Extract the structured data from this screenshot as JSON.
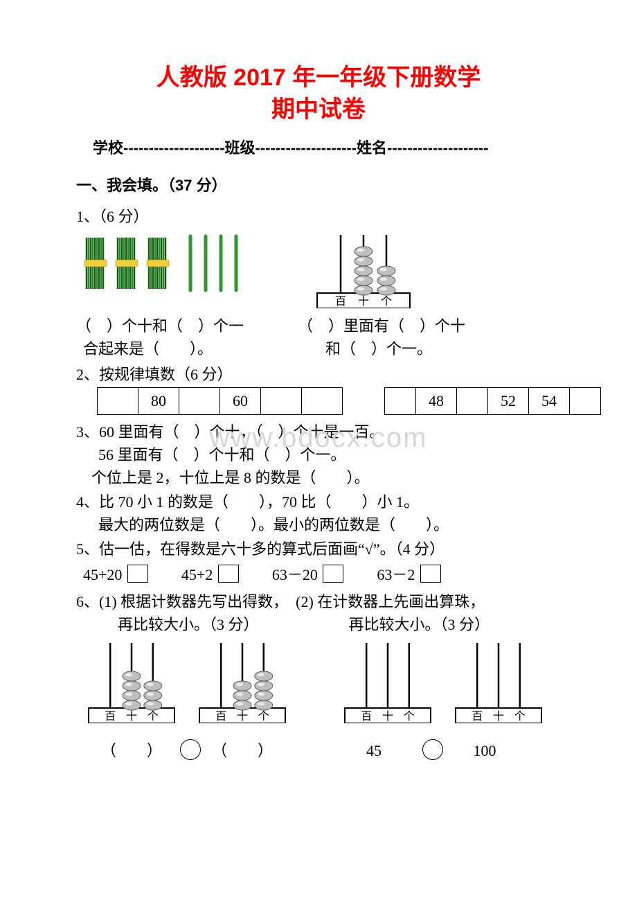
{
  "title_line1": "人教版 2017 年一年级下册数学",
  "title_line2": "期中试卷",
  "header": "学校--------------------班级--------------------姓名--------------------",
  "section1": "一、我会填。（37 分）",
  "q1": {
    "label": "1、（6 分）",
    "left_line1": "（　）个十和（　）个一",
    "left_line2": "合起来是（　　）。",
    "right_line1": "（　）里面有（　）个十",
    "right_line2": "和（　）个一。",
    "abacus_labels": "百 十 个"
  },
  "q2": {
    "label": "2、按规律填数（6 分）",
    "seqA": [
      "",
      "80",
      "",
      "60",
      "",
      ""
    ],
    "seqB": [
      "",
      "48",
      "",
      "52",
      "54",
      ""
    ]
  },
  "q3": {
    "line1": "3、60 里面有（　）个十，（　）个十是一百。",
    "line2": "56 里面有（　）个十和（　）个一。",
    "line3": "个位上是 2，十位上是 8 的数是（　　）。"
  },
  "q4": {
    "line1": "4、比 70 小 1 的数是（　　），70 比（　　）小 1。",
    "line2": "最大的两位数是（　　）。最小的两位数是（　　）。"
  },
  "q5": {
    "label": "5、估一估，在得数是六十多的算式后面画“√”。（4 分）",
    "a": "45+20",
    "b": "45+2",
    "c": "63－20",
    "d": "63－2"
  },
  "q6": {
    "line1": "6、(1) 根据计数器先写出得数，　(2) 在计数器上先画出算珠，",
    "line2a": "再比较大小。（3 分）",
    "line2b": "再比较大小。（3 分）",
    "abacus_labels": "百 十 个",
    "left_compare_l": "（　　）",
    "left_compare_r": "（　　）",
    "right_compare_l": "45",
    "right_compare_r": "100"
  },
  "watermark": "www.bdocx.com",
  "sticks": {
    "bundle_count": 3,
    "single_count": 4,
    "bundle_color": "#2a8a2a",
    "bundle_dark": "#0f5f0f",
    "band_color": "#f2cc3a",
    "single_color": "#39a339"
  },
  "abacus_style": {
    "bead_fill": "#bfbfbf",
    "bead_stroke": "#5a5a5a",
    "rod_color": "#000000"
  },
  "q1_abacus_beads": {
    "hundreds": 0,
    "tens": 5,
    "ones": 3
  },
  "q6_abacus_A_beads": {
    "hundreds": 0,
    "tens": 4,
    "ones": 3
  },
  "q6_abacus_B_beads": {
    "hundreds": 0,
    "tens": 3,
    "ones": 4
  },
  "q6_abacus_C_beads": {
    "hundreds": 0,
    "tens": 0,
    "ones": 0
  },
  "q6_abacus_D_beads": {
    "hundreds": 0,
    "tens": 0,
    "ones": 0
  }
}
